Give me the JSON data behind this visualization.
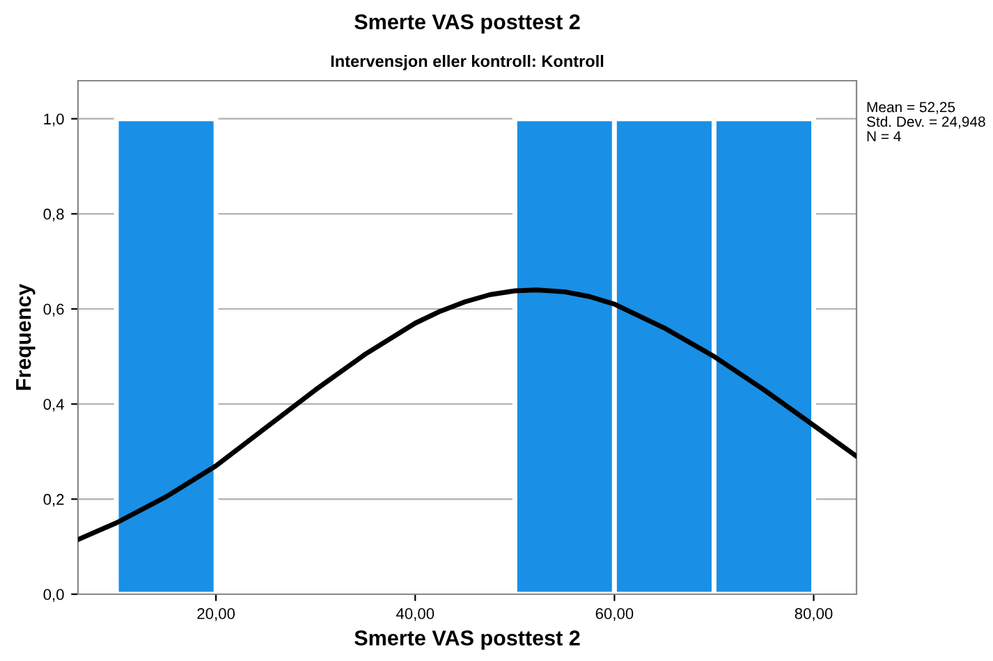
{
  "chart_data": {
    "type": "histogram",
    "title": "Smerte VAS posttest 2",
    "subtitle": "Intervensjon eller kontroll: Kontroll",
    "xlabel": "Smerte VAS posttest 2",
    "ylabel": "Frequency",
    "bins": [
      10,
      20,
      30,
      40,
      50,
      60,
      70,
      80
    ],
    "values": [
      1,
      0,
      0,
      0,
      1,
      1,
      1
    ],
    "color": "#1a8fe6",
    "series": [
      {
        "type": "line",
        "color": "#000000",
        "x": [
          6.15,
          10,
          15,
          20,
          25,
          30,
          35,
          40,
          42.5,
          45,
          47.5,
          50,
          52.25,
          55,
          57.5,
          60,
          65,
          70,
          75,
          80,
          84.3
        ],
        "values": [
          0.115,
          0.15,
          0.205,
          0.27,
          0.35,
          0.43,
          0.505,
          0.57,
          0.595,
          0.615,
          0.63,
          0.638,
          0.64,
          0.636,
          0.626,
          0.61,
          0.56,
          0.5,
          0.43,
          0.355,
          0.29
        ]
      }
    ],
    "xlim": [
      6.15,
      84.3
    ],
    "ylim": [
      0,
      1.08
    ],
    "xticks": [
      {
        "value": 20,
        "label": "20,00"
      },
      {
        "value": 40,
        "label": "40,00"
      },
      {
        "value": 60,
        "label": "60,00"
      },
      {
        "value": 80,
        "label": "80,00"
      }
    ],
    "yticks": [
      {
        "value": 0,
        "label": "0,0"
      },
      {
        "value": 0.2,
        "label": "0,2"
      },
      {
        "value": 0.4,
        "label": "0,4"
      },
      {
        "value": 0.6,
        "label": "0,6"
      },
      {
        "value": 0.8,
        "label": "0,8"
      },
      {
        "value": 1.0,
        "label": "1,0"
      }
    ],
    "grid": "y",
    "annotations": [
      "Mean = 52,25",
      "Std. Dev. = 24,948",
      "N = 4"
    ]
  }
}
